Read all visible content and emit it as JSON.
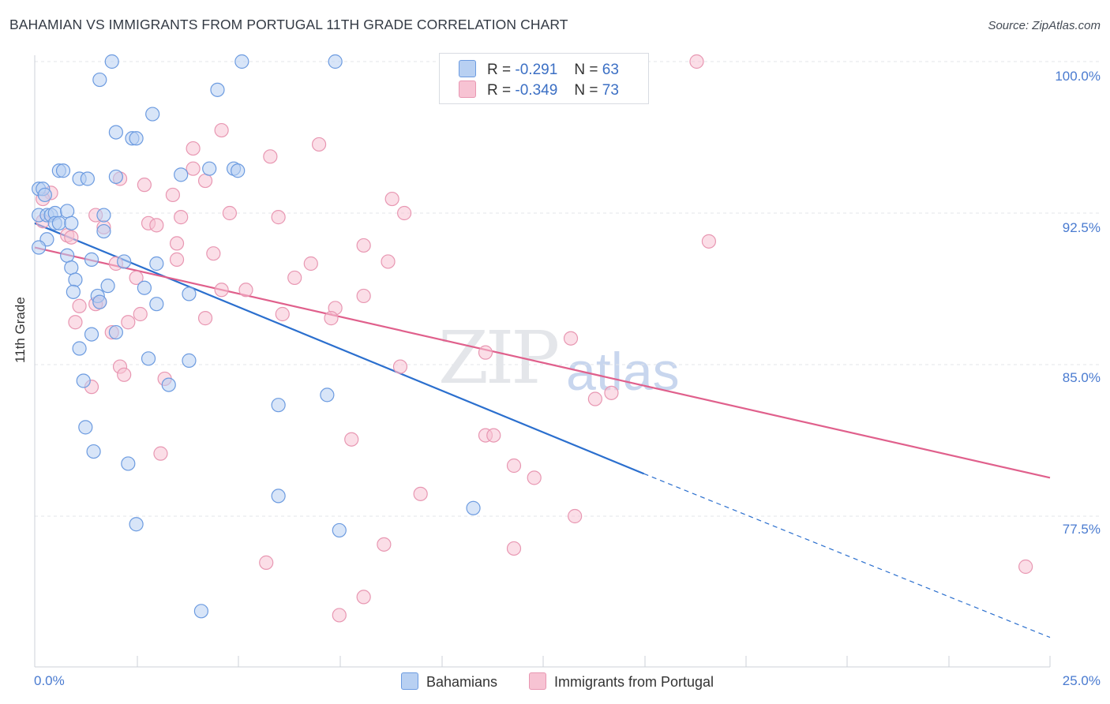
{
  "title": "BAHAMIAN VS IMMIGRANTS FROM PORTUGAL 11TH GRADE CORRELATION CHART",
  "source": "Source: ZipAtlas.com",
  "watermark_zip": "ZIP",
  "watermark_atlas": "atlas",
  "colors": {
    "blue_fill": "#b8d0f2",
    "blue_stroke": "#6c9be0",
    "blue_line": "#2b6fce",
    "pink_fill": "#f7c3d3",
    "pink_stroke": "#e897b2",
    "pink_line": "#e0608c",
    "tick_text": "#4a7bd0"
  },
  "legend_top": {
    "blue": {
      "r_label": "R =",
      "r_value": "-0.291",
      "n_label": "N =",
      "n_value": "63"
    },
    "pink": {
      "r_label": "R =",
      "r_value": "-0.349",
      "n_label": "N =",
      "n_value": "73"
    }
  },
  "legend_bottom": {
    "blue": "Bahamians",
    "pink": "Immigrants from Portugal"
  },
  "chart_data": {
    "type": "scatter",
    "title": "BAHAMIAN VS IMMIGRANTS FROM PORTUGAL 11TH GRADE CORRELATION CHART",
    "xlabel": "",
    "ylabel": "11th Grade",
    "x_tick_labels": [
      "0.0%",
      "25.0%"
    ],
    "y_tick_labels": [
      "100.0%",
      "92.5%",
      "85.0%",
      "77.5%"
    ],
    "xlim": [
      0,
      25
    ],
    "ylim": [
      71.5,
      100.8
    ],
    "grid": true,
    "legend_placement": "top-center and bottom",
    "series": [
      {
        "name": "Bahamians",
        "R": -0.291,
        "N": 63,
        "trend": {
          "x0": 0,
          "y0": 92.0,
          "x1": 15,
          "y1": 79.6,
          "dashed_to_x": 25,
          "dashed_to_y": 71.5
        },
        "points": [
          [
            1.9,
            100.0
          ],
          [
            5.1,
            100.0
          ],
          [
            7.4,
            100.0
          ],
          [
            1.6,
            99.1
          ],
          [
            4.5,
            98.6
          ],
          [
            2.9,
            97.4
          ],
          [
            2.0,
            96.5
          ],
          [
            2.4,
            96.2
          ],
          [
            2.5,
            96.2
          ],
          [
            0.6,
            94.6
          ],
          [
            0.7,
            94.6
          ],
          [
            4.3,
            94.7
          ],
          [
            4.9,
            94.7
          ],
          [
            5.0,
            94.6
          ],
          [
            3.6,
            94.4
          ],
          [
            2.0,
            94.3
          ],
          [
            1.1,
            94.2
          ],
          [
            1.3,
            94.2
          ],
          [
            0.1,
            93.7
          ],
          [
            0.2,
            93.7
          ],
          [
            0.25,
            93.4
          ],
          [
            0.1,
            92.4
          ],
          [
            0.3,
            92.4
          ],
          [
            0.4,
            92.4
          ],
          [
            0.5,
            92.5
          ],
          [
            0.8,
            92.6
          ],
          [
            1.7,
            92.4
          ],
          [
            0.5,
            92.0
          ],
          [
            0.6,
            92.0
          ],
          [
            0.9,
            92.0
          ],
          [
            1.7,
            91.6
          ],
          [
            0.3,
            91.2
          ],
          [
            0.1,
            90.8
          ],
          [
            0.8,
            90.4
          ],
          [
            1.4,
            90.2
          ],
          [
            2.2,
            90.1
          ],
          [
            3.0,
            90.0
          ],
          [
            0.9,
            89.8
          ],
          [
            1.0,
            89.2
          ],
          [
            1.8,
            88.9
          ],
          [
            2.7,
            88.8
          ],
          [
            0.95,
            88.6
          ],
          [
            3.8,
            88.5
          ],
          [
            1.55,
            88.4
          ],
          [
            1.6,
            88.1
          ],
          [
            3.0,
            88.0
          ],
          [
            2.0,
            86.6
          ],
          [
            1.4,
            86.5
          ],
          [
            1.1,
            85.8
          ],
          [
            2.8,
            85.3
          ],
          [
            3.8,
            85.2
          ],
          [
            1.2,
            84.2
          ],
          [
            3.3,
            84.0
          ],
          [
            6.0,
            83.0
          ],
          [
            7.2,
            83.5
          ],
          [
            1.25,
            81.9
          ],
          [
            1.45,
            80.7
          ],
          [
            2.3,
            80.1
          ],
          [
            6.0,
            78.5
          ],
          [
            10.8,
            77.9
          ],
          [
            2.5,
            77.1
          ],
          [
            7.5,
            76.8
          ],
          [
            4.1,
            72.8
          ]
        ]
      },
      {
        "name": "Immigrants from Portugal",
        "R": -0.349,
        "N": 73,
        "trend": {
          "x0": 0,
          "y0": 90.8,
          "x1": 25,
          "y1": 79.4
        },
        "points": [
          [
            13.8,
            100.0
          ],
          [
            16.3,
            100.0
          ],
          [
            4.6,
            96.6
          ],
          [
            7.0,
            95.9
          ],
          [
            3.9,
            95.7
          ],
          [
            5.8,
            95.3
          ],
          [
            3.9,
            94.7
          ],
          [
            2.1,
            94.2
          ],
          [
            4.2,
            94.1
          ],
          [
            2.7,
            93.9
          ],
          [
            0.4,
            93.5
          ],
          [
            3.4,
            93.4
          ],
          [
            8.8,
            93.2
          ],
          [
            0.2,
            93.2
          ],
          [
            4.8,
            92.5
          ],
          [
            1.5,
            92.4
          ],
          [
            9.1,
            92.5
          ],
          [
            3.6,
            92.3
          ],
          [
            6.0,
            92.3
          ],
          [
            0.2,
            92.1
          ],
          [
            2.8,
            92.0
          ],
          [
            3.0,
            91.9
          ],
          [
            1.7,
            91.8
          ],
          [
            0.8,
            91.4
          ],
          [
            0.9,
            91.3
          ],
          [
            3.5,
            91.0
          ],
          [
            8.1,
            90.9
          ],
          [
            16.6,
            91.1
          ],
          [
            4.4,
            90.5
          ],
          [
            3.5,
            90.2
          ],
          [
            2.0,
            90.0
          ],
          [
            8.7,
            90.1
          ],
          [
            6.8,
            90.0
          ],
          [
            6.4,
            89.3
          ],
          [
            2.5,
            89.3
          ],
          [
            4.6,
            88.7
          ],
          [
            5.2,
            88.7
          ],
          [
            8.1,
            88.4
          ],
          [
            1.6,
            88.1
          ],
          [
            1.1,
            87.9
          ],
          [
            7.4,
            87.8
          ],
          [
            6.1,
            87.5
          ],
          [
            2.6,
            87.5
          ],
          [
            4.2,
            87.3
          ],
          [
            7.3,
            87.3
          ],
          [
            2.3,
            87.1
          ],
          [
            1.0,
            87.1
          ],
          [
            1.9,
            86.6
          ],
          [
            13.2,
            86.3
          ],
          [
            11.1,
            85.6
          ],
          [
            2.1,
            84.9
          ],
          [
            9.0,
            84.9
          ],
          [
            2.2,
            84.5
          ],
          [
            3.2,
            84.3
          ],
          [
            1.4,
            83.9
          ],
          [
            14.2,
            83.6
          ],
          [
            13.8,
            83.3
          ],
          [
            7.8,
            81.3
          ],
          [
            11.1,
            81.5
          ],
          [
            11.3,
            81.5
          ],
          [
            3.1,
            80.6
          ],
          [
            11.8,
            80.0
          ],
          [
            12.3,
            79.4
          ],
          [
            9.5,
            78.6
          ],
          [
            13.3,
            77.5
          ],
          [
            8.6,
            76.1
          ],
          [
            11.8,
            75.9
          ],
          [
            5.7,
            75.2
          ],
          [
            24.4,
            75.0
          ],
          [
            8.1,
            73.5
          ],
          [
            7.5,
            72.6
          ],
          [
            13.9,
            99.9
          ],
          [
            1.5,
            88.0
          ]
        ]
      }
    ]
  }
}
